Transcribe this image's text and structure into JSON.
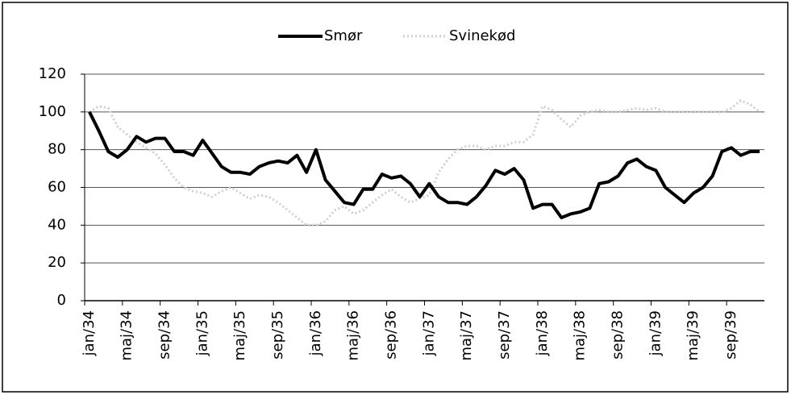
{
  "chart_data": {
    "type": "line",
    "categories": [
      "jan/34",
      null,
      null,
      null,
      "maj/34",
      null,
      null,
      null,
      "sep/34",
      null,
      null,
      null,
      "jan/35",
      null,
      null,
      null,
      "maj/35",
      null,
      null,
      null,
      "sep/35",
      null,
      null,
      null,
      "jan/36",
      null,
      null,
      null,
      "maj/36",
      null,
      null,
      null,
      "sep/36",
      null,
      null,
      null,
      "jan/37",
      null,
      null,
      null,
      "maj/37",
      null,
      null,
      null,
      "sep/37",
      null,
      null,
      null,
      "jan/38",
      null,
      null,
      null,
      "maj/38",
      null,
      null,
      null,
      "sep/38",
      null,
      null,
      null,
      "jan/39",
      null,
      null,
      null,
      "maj/39",
      null,
      null,
      null,
      "sep/39",
      null,
      null,
      null
    ],
    "series": [
      {
        "name": "Smør",
        "color": "#000000",
        "values": [
          100,
          90,
          79,
          76,
          80,
          87,
          84,
          86,
          86,
          79,
          79,
          77,
          85,
          78,
          71,
          68,
          68,
          67,
          71,
          73,
          74,
          73,
          77,
          68,
          80,
          64,
          58,
          52,
          51,
          59,
          59,
          67,
          65,
          66,
          62,
          55,
          62,
          55,
          52,
          52,
          51,
          55,
          61,
          69,
          67,
          70,
          64,
          49,
          51,
          51,
          44,
          46,
          47,
          49,
          62,
          63,
          66,
          73,
          75,
          71,
          69,
          60,
          56,
          52,
          57,
          60,
          66,
          79,
          81,
          77,
          79,
          79
        ]
      },
      {
        "name": "Svinekød",
        "color": "#cfcfcf",
        "values": [
          100,
          103,
          102,
          92,
          88,
          84,
          81,
          78,
          72,
          65,
          60,
          58,
          57,
          55,
          58,
          60,
          57,
          54,
          56,
          55,
          52,
          48,
          44,
          40,
          40,
          42,
          48,
          50,
          46,
          48,
          52,
          56,
          59,
          55,
          52,
          54,
          56,
          68,
          75,
          80,
          82,
          82,
          80,
          82,
          82,
          84,
          84,
          88,
          103,
          101,
          96,
          92,
          98,
          100,
          101,
          100,
          100,
          101,
          102,
          101,
          102,
          100,
          100,
          100,
          100,
          100,
          100,
          100,
          102,
          106,
          104,
          100
        ]
      }
    ],
    "ylim": [
      0,
      120
    ],
    "yticks": [
      0,
      20,
      40,
      60,
      80,
      100,
      120
    ],
    "grid": true,
    "legend": "top"
  }
}
